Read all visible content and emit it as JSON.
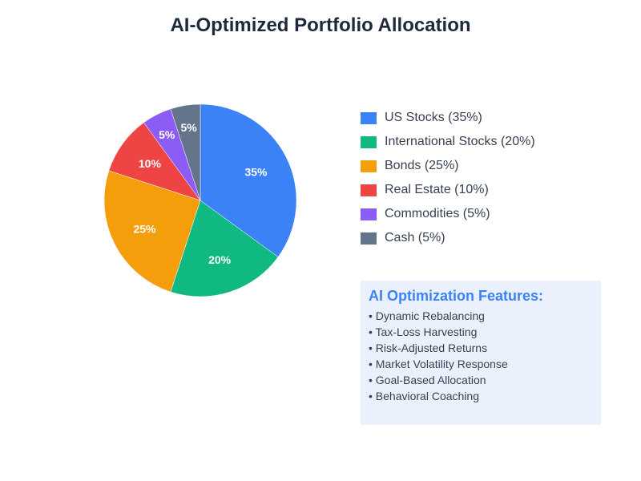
{
  "title": "AI-Optimized Portfolio Allocation",
  "chart_data": {
    "type": "pie",
    "title": "AI-Optimized Portfolio Allocation",
    "slices": [
      {
        "label": "US Stocks (35%)",
        "value": 35,
        "display": "35%",
        "color": "#3b82f6"
      },
      {
        "label": "International Stocks (20%)",
        "value": 20,
        "display": "20%",
        "color": "#10b981"
      },
      {
        "label": "Bonds (25%)",
        "value": 25,
        "display": "25%",
        "color": "#f59e0b"
      },
      {
        "label": "Real Estate (10%)",
        "value": 10,
        "display": "10%",
        "color": "#ef4444"
      },
      {
        "label": "Commodities (5%)",
        "value": 5,
        "display": "5%",
        "color": "#8b5cf6"
      },
      {
        "label": "Cash (5%)",
        "value": 5,
        "display": "5%",
        "color": "#64748b"
      }
    ],
    "legend": "right"
  },
  "features": {
    "title": "AI Optimization Features:",
    "items": [
      "• Dynamic Rebalancing",
      "• Tax-Loss Harvesting",
      "• Risk-Adjusted Returns",
      "• Market Volatility Response",
      "• Goal-Based Allocation",
      "• Behavioral Coaching"
    ]
  }
}
